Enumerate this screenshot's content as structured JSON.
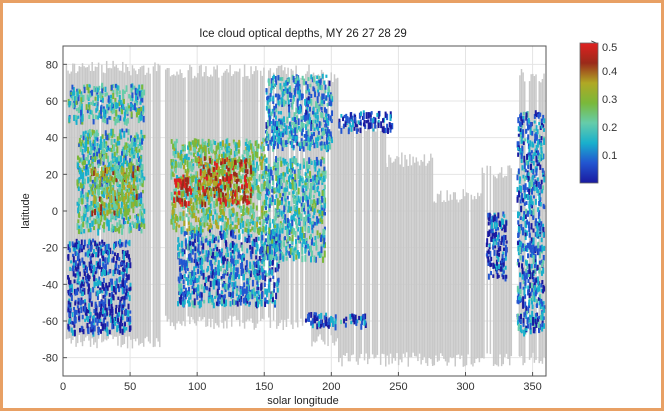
{
  "chart_data": {
    "type": "heatmap",
    "title": "Ice cloud optical depths, MY 26  27  28  29",
    "xlabel": "solar longitude",
    "ylabel": "latitude",
    "xlim": [
      0,
      360
    ],
    "ylim": [
      -90,
      90
    ],
    "xticks": [
      0,
      50,
      100,
      150,
      200,
      250,
      300,
      350
    ],
    "yticks": [
      -80,
      -60,
      -40,
      -20,
      0,
      20,
      40,
      60,
      80
    ],
    "grid": true,
    "no_data_color": "#c8c8c8",
    "colorbar": {
      "label": ">",
      "ticks": [
        0.1,
        0.2,
        0.3,
        0.4,
        0.5
      ],
      "range": [
        0,
        0.5
      ],
      "colors": [
        "#1a1aa0",
        "#2255d0",
        "#19b0cc",
        "#66ccaa",
        "#7ab83a",
        "#b0a824",
        "#9a2a1a",
        "#e02020"
      ]
    },
    "coverage_regions": [
      {
        "lon": [
          2,
          72
        ],
        "lat": [
          -75,
          82
        ]
      },
      {
        "lon": [
          76,
          185
        ],
        "lat": [
          -65,
          80
        ]
      },
      {
        "lon": [
          185,
          205
        ],
        "lat": [
          -75,
          78
        ]
      },
      {
        "lon": [
          205,
          240
        ],
        "lat": [
          -85,
          50
        ]
      },
      {
        "lon": [
          240,
          275
        ],
        "lat": [
          -85,
          32
        ]
      },
      {
        "lon": [
          275,
          312
        ],
        "lat": [
          -85,
          12
        ]
      },
      {
        "lon": [
          312,
          340
        ],
        "lat": [
          -85,
          25
        ]
      },
      {
        "lon": [
          340,
          358
        ],
        "lat": [
          -85,
          78
        ]
      }
    ],
    "cloud_clusters": [
      {
        "lon": [
          3,
          60
        ],
        "lat": [
          50,
          70
        ],
        "tau": 0.18
      },
      {
        "lon": [
          10,
          60
        ],
        "lat": [
          -10,
          45
        ],
        "tau": 0.2
      },
      {
        "lon": [
          3,
          50
        ],
        "lat": [
          -65,
          -15
        ],
        "tau": 0.08
      },
      {
        "lon": [
          20,
          55
        ],
        "lat": [
          0,
          25
        ],
        "tau": 0.3
      },
      {
        "lon": [
          80,
          150
        ],
        "lat": [
          -10,
          40
        ],
        "tau": 0.25
      },
      {
        "lon": [
          82,
          95
        ],
        "lat": [
          5,
          20
        ],
        "tau": 0.45
      },
      {
        "lon": [
          100,
          140
        ],
        "lat": [
          5,
          30
        ],
        "tau": 0.38
      },
      {
        "lon": [
          85,
          160
        ],
        "lat": [
          -50,
          -10
        ],
        "tau": 0.12
      },
      {
        "lon": [
          150,
          200
        ],
        "lat": [
          35,
          75
        ],
        "tau": 0.15
      },
      {
        "lon": [
          150,
          195
        ],
        "lat": [
          -25,
          30
        ],
        "tau": 0.18
      },
      {
        "lon": [
          180,
          225
        ],
        "lat": [
          -62,
          -55
        ],
        "tau": 0.1
      },
      {
        "lon": [
          205,
          245
        ],
        "lat": [
          45,
          55
        ],
        "tau": 0.08
      },
      {
        "lon": [
          315,
          330
        ],
        "lat": [
          -35,
          0
        ],
        "tau": 0.08
      },
      {
        "lon": [
          338,
          358
        ],
        "lat": [
          -65,
          55
        ],
        "tau": 0.12
      }
    ]
  }
}
